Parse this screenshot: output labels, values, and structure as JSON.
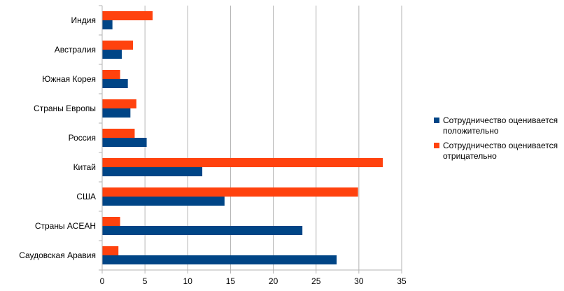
{
  "chart_data": {
    "type": "bar",
    "orientation": "horizontal",
    "categories": [
      "Индия",
      "Австралия",
      "Южная Корея",
      "Страны Европы",
      "Россия",
      "Китай",
      "США",
      "Страны АСЕАН",
      "Саудовская Аравия"
    ],
    "series": [
      {
        "name": "Сотрудничество оценивается положительно",
        "name_lines": [
          "Сотрудничество оценивается",
          "положительно"
        ],
        "color": "#004586",
        "values": [
          1.2,
          2.3,
          3.0,
          3.3,
          5.2,
          11.7,
          14.3,
          23.4,
          27.4
        ]
      },
      {
        "name": "Сотрудничество оценивается отрицательно",
        "name_lines": [
          "Сотрудничество оценивается",
          "отрицательно"
        ],
        "color": "#ff420e",
        "values": [
          5.9,
          3.6,
          2.1,
          4.0,
          3.8,
          32.8,
          29.9,
          2.1,
          1.9
        ]
      }
    ],
    "xlim": [
      0,
      35
    ],
    "xticks": [
      "0",
      "5",
      "10",
      "15",
      "20",
      "25",
      "30",
      "35"
    ],
    "xlabel": "",
    "ylabel": "",
    "title": "",
    "grid": "vertical",
    "legend_position": "right"
  }
}
